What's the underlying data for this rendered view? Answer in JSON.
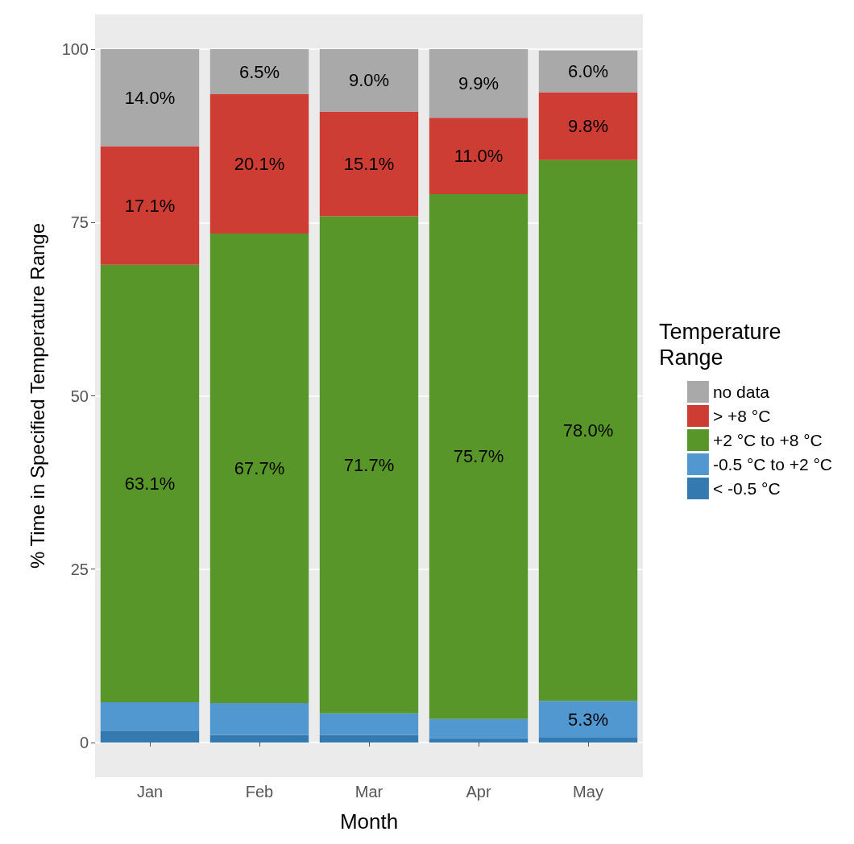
{
  "chart_data": {
    "type": "bar",
    "stacked": true,
    "xlabel": "Month",
    "ylabel": "% Time in Specified Temperature Range",
    "legend_title": "Temperature Range",
    "legend": "right",
    "grid": true,
    "categories": [
      "Jan",
      "Feb",
      "Mar",
      "Apr",
      "May"
    ],
    "ylim": [
      -5,
      105
    ],
    "yticks": [
      0,
      25,
      50,
      75,
      100
    ],
    "series": [
      {
        "name": "< -0.5 °C",
        "color": "#3579b1",
        "values": [
          1.7,
          1.1,
          1.1,
          0.6,
          0.7
        ]
      },
      {
        "name": "-0.5 °C to +2 °C",
        "color": "#5098cf",
        "values": [
          4.1,
          4.6,
          3.1,
          2.8,
          5.3
        ],
        "value_labels": [
          null,
          null,
          null,
          null,
          "5.3%"
        ]
      },
      {
        "name": "+2 °C to +8 °C",
        "color": "#58962a",
        "values": [
          63.1,
          67.7,
          71.7,
          75.7,
          78.0
        ],
        "value_labels": [
          "63.1%",
          "67.7%",
          "71.7%",
          "75.7%",
          "78.0%"
        ]
      },
      {
        "name": "> +8 °C",
        "color": "#cd3d33",
        "values": [
          17.1,
          20.1,
          15.1,
          11.0,
          9.8
        ],
        "value_labels": [
          "17.1%",
          "20.1%",
          "15.1%",
          "11.0%",
          "9.8%"
        ]
      },
      {
        "name": "no data",
        "color": "#a9a9a9",
        "values": [
          14.0,
          6.5,
          9.0,
          9.9,
          6.0
        ],
        "value_labels": [
          "14.0%",
          "6.5%",
          "9.0%",
          "9.9%",
          "6.0%"
        ]
      }
    ]
  }
}
